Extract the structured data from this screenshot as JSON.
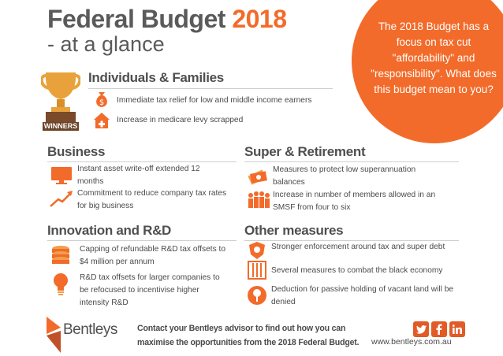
{
  "header": {
    "title_main": "Federal Budget",
    "title_year": "2018",
    "subtitle": "- at a glance"
  },
  "callout": {
    "text": "The 2018 Budget has a focus on tax cut \"affordability\" and \"responsibility\". What does this budget mean to you?"
  },
  "winners": {
    "badge_label": "WINNERS",
    "heading": "Individuals & Families",
    "items": [
      "Immediate tax relief for low and middle income earners",
      "Increase in medicare levy scrapped"
    ]
  },
  "business": {
    "heading": "Business",
    "items": [
      "Instant asset write-off extended 12 months",
      "Commitment to reduce company tax rates for big business"
    ]
  },
  "super": {
    "heading": "Super & Retirement",
    "items": [
      "Measures to protect low superannuation balances",
      "Increase in number of members allowed  in an SMSF from four to six"
    ]
  },
  "innovation": {
    "heading": "Innovation and R&D",
    "items": [
      "Capping of refundable R&D tax offsets to $4 million per annum",
      "R&D tax offsets for larger companies to be refocused to incentivise higher intensity R&D"
    ]
  },
  "other": {
    "heading": "Other measures",
    "items": [
      "Stronger enforcement around tax and super debt",
      "Several measures to combat the black economy",
      "Deduction for passive holding of vacant land will be denied"
    ]
  },
  "footer": {
    "logo_text": "Bentleys",
    "contact": "Contact your Bentleys advisor to find out how you can maximise the opportunities from the 2018 Federal Budget.",
    "url": "www.bentleys.com.au",
    "social": [
      "twitter-icon",
      "facebook-icon",
      "linkedin-icon"
    ]
  },
  "colors": {
    "accent": "#f26b2a",
    "text": "#4a4a4a",
    "social": "#e25a26"
  }
}
